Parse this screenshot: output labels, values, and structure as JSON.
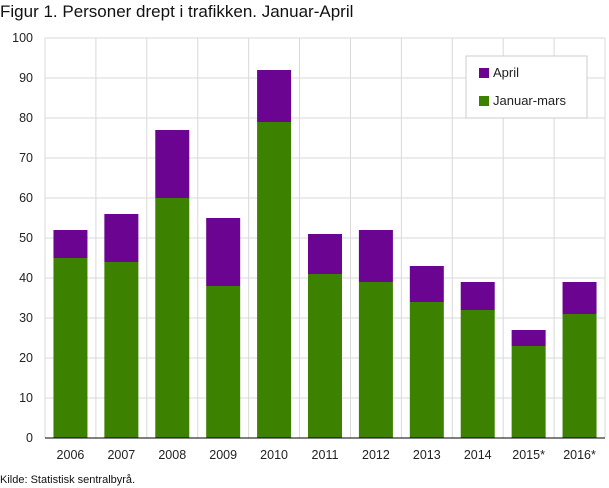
{
  "title": "Figur 1. Personer drept i trafikken. Januar-April",
  "source": "Kilde: Statistisk sentralbyrå.",
  "chart_data": {
    "type": "bar",
    "stacked": true,
    "categories": [
      "2006",
      "2007",
      "2008",
      "2009",
      "2010",
      "2011",
      "2012",
      "2013",
      "2014",
      "2015*",
      "2016*"
    ],
    "series": [
      {
        "name": "Januar-mars",
        "color": "#3d8100",
        "values": [
          45,
          44,
          60,
          38,
          79,
          41,
          39,
          34,
          32,
          23,
          31
        ]
      },
      {
        "name": "April",
        "color": "#6a0491",
        "values": [
          7,
          12,
          17,
          17,
          13,
          10,
          13,
          9,
          7,
          4,
          8
        ]
      }
    ],
    "ylim": [
      0,
      100
    ],
    "yticks": [
      0,
      10,
      20,
      30,
      40,
      50,
      60,
      70,
      80,
      90,
      100
    ],
    "grid": true,
    "legend": {
      "position": "top-right",
      "order": [
        "April",
        "Januar-mars"
      ]
    }
  }
}
